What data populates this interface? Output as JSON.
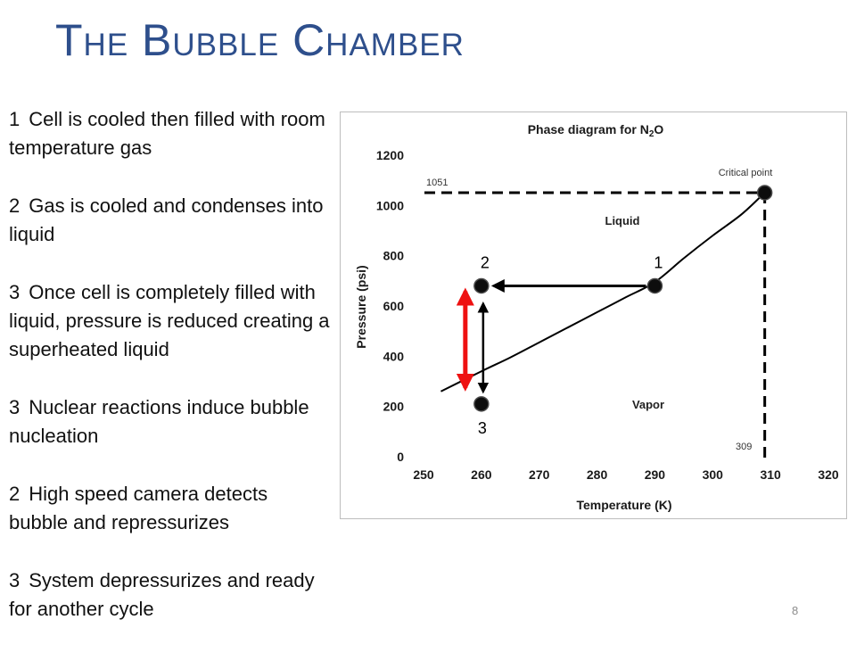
{
  "slide": {
    "title": "The Bubble Chamber",
    "page_number": "8"
  },
  "steps": [
    {
      "number": "1",
      "text": "Cell is cooled then filled with room temperature gas"
    },
    {
      "number": "2",
      "text": "Gas is cooled and condenses into liquid"
    },
    {
      "number": "3",
      "text": "Once cell is completely filled with liquid, pressure is reduced creating a superheated liquid"
    },
    {
      "number": "3",
      "text": "Nuclear reactions induce bubble nucleation"
    },
    {
      "number": "2",
      "text": "High speed camera detects bubble and repressurizes"
    },
    {
      "number": "3",
      "text": "System depressurizes and ready for another cycle"
    }
  ],
  "chart_data": {
    "type": "line",
    "title_main": "Phase diagram for N",
    "title_sub": "2",
    "title_tail": "O",
    "xlabel": "Temperature (K)",
    "ylabel": "Pressure (psi)",
    "xlim": [
      250,
      320
    ],
    "ylim": [
      0,
      1200
    ],
    "xticks": [
      250,
      260,
      270,
      280,
      290,
      300,
      310,
      320
    ],
    "yticks": [
      0,
      200,
      400,
      600,
      800,
      1000,
      1200
    ],
    "grid": false,
    "series": [
      {
        "name": "",
        "x": [
          253,
          260,
          265,
          270,
          275,
          280,
          285,
          290,
          295,
          300,
          305,
          309
        ],
        "y": [
          260,
          340,
          395,
          455,
          515,
          575,
          635,
          695,
          790,
          880,
          965,
          1051
        ]
      }
    ],
    "region_labels": {
      "liquid": "Liquid",
      "vapor": "Vapor"
    },
    "critical_point": {
      "label": "Critical point",
      "x": 309,
      "y": 1051,
      "x_label": "309",
      "y_label": "1051"
    },
    "state_points": [
      {
        "label": "1",
        "x": 290,
        "y": 680
      },
      {
        "label": "2",
        "x": 260,
        "y": 680
      },
      {
        "label": "3",
        "x": 260,
        "y": 210
      }
    ],
    "colors": {
      "curve": "#000000",
      "marker": "#0d0d0d",
      "arrows": "#000000",
      "pressure_drop_arrow": "#ee1111",
      "title": "#1a1a1a"
    }
  }
}
